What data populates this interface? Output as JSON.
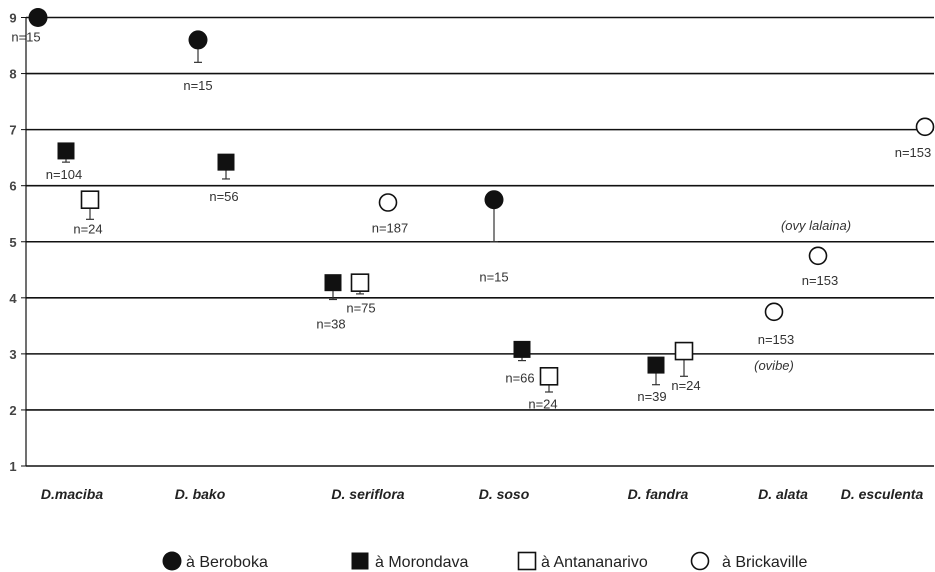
{
  "chart_data": {
    "type": "scatter",
    "ylim": [
      1,
      9
    ],
    "yticks": [
      "1",
      "2",
      "3",
      "4",
      "5",
      "6",
      "7",
      "8",
      "9"
    ],
    "grid": true,
    "legend_position": "bottom",
    "categories": [
      "D.maciba",
      "D. bako",
      "D. seriflora",
      "D. soso",
      "D. fandra",
      "D. alata",
      "D. esculenta"
    ],
    "series": [
      {
        "name": "à Beroboka",
        "marker": "filled-circle",
        "color": "#111111",
        "points": [
          {
            "category": "D.maciba",
            "y": 9.0,
            "err": 0,
            "n": "n=15"
          },
          {
            "category": "D. bako",
            "y": 8.6,
            "err": 0.4,
            "n": "n=15"
          },
          {
            "category": "D. soso",
            "y": 5.75,
            "err": 0.75,
            "n": "n=15"
          }
        ]
      },
      {
        "name": "à Morondava",
        "marker": "filled-square",
        "color": "#111111",
        "points": [
          {
            "category": "D.maciba",
            "y": 6.62,
            "err": 0.2,
            "n": "n=104"
          },
          {
            "category": "D. bako",
            "y": 6.42,
            "err": 0.3,
            "n": "n=56"
          },
          {
            "category": "D. seriflora",
            "y": 4.27,
            "err": 0.3,
            "n": "n=38"
          },
          {
            "category": "D. soso",
            "y": 3.08,
            "err": 0.2,
            "n": "n=66"
          },
          {
            "category": "D. fandra",
            "y": 2.8,
            "err": 0.35,
            "n": "n=39"
          }
        ]
      },
      {
        "name": "à Antananarivo",
        "marker": "open-square",
        "color": "#111111",
        "points": [
          {
            "category": "D.maciba",
            "y": 5.75,
            "err": 0.35,
            "n": "n=24"
          },
          {
            "category": "D. seriflora",
            "y": 4.27,
            "err": 0.2,
            "n": "n=75"
          },
          {
            "category": "D. soso",
            "y": 2.6,
            "err": 0.28,
            "n": "n=24"
          },
          {
            "category": "D. fandra",
            "y": 3.05,
            "err": 0.45,
            "n": "n=24"
          }
        ]
      },
      {
        "name": "à Brickaville",
        "marker": "open-circle",
        "color": "#111111",
        "points": [
          {
            "category": "D. seriflora",
            "y": 5.7,
            "err": 0,
            "n": "n=187"
          },
          {
            "category": "D. alata",
            "y": 4.75,
            "err": 0,
            "n": "n=153",
            "note": "(ovy lalaina)"
          },
          {
            "category": "D. alata",
            "y": 3.75,
            "err": 0,
            "n": "n=153",
            "note": "(ovibe)"
          },
          {
            "category": "D. esculenta",
            "y": 7.05,
            "err": 0,
            "n": "n=153"
          }
        ]
      }
    ]
  }
}
